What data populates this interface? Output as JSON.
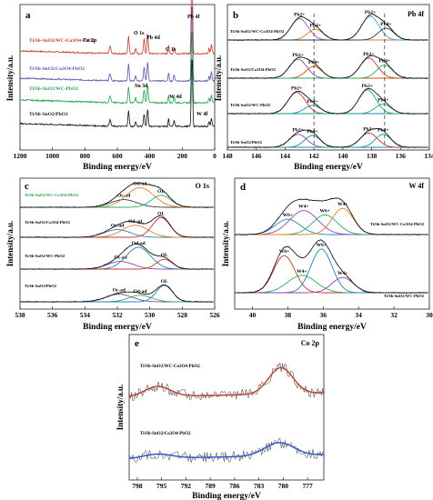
{
  "figure": {
    "panels": [
      "a",
      "b",
      "c",
      "d",
      "e"
    ]
  },
  "chart_data": [
    {
      "id": "a",
      "type": "line",
      "letter": "a",
      "xlabel": "Binding energy/eV",
      "ylabel": "Intensity/a.u.",
      "xlim": [
        1200,
        0
      ],
      "xticks": [
        1200,
        1000,
        800,
        600,
        400,
        200,
        0
      ],
      "series": [
        {
          "name": "Ti/Sb-SnO2/WC-Co3O4-PbO2",
          "color": "#c0392b"
        },
        {
          "name": "Ti/Sb-SnO2/Co3O4-PbO2",
          "color": "#5b4fa8"
        },
        {
          "name": "Ti/Sb-SnO2/WC-PbO2",
          "color": "#1f9e4a"
        },
        {
          "name": "Ti/Sb-SnO2/PbO2",
          "color": "#111111"
        }
      ],
      "annotations": [
        {
          "text": "Co 2p",
          "x": 785
        },
        {
          "text": "O 1s",
          "x": 531
        },
        {
          "text": "Pb 4d",
          "x": 430
        },
        {
          "text": "Sn 3d",
          "x": 487
        },
        {
          "text": "C 1s",
          "x": 284
        },
        {
          "text": "W 4d",
          "x": 250
        },
        {
          "text": "Pb 4f",
          "x": 138
        },
        {
          "text": "W 4f",
          "x": 35
        }
      ]
    },
    {
      "id": "b",
      "type": "line",
      "letter": "b",
      "corner": "Pb 4f",
      "xlabel": "Binding energy/eV",
      "ylabel": "Intensity/a.u.",
      "xlim": [
        148,
        134
      ],
      "xticks": [
        148,
        146,
        144,
        142,
        140,
        138,
        136,
        134
      ],
      "dashed_lines": [
        142.0,
        137.1
      ],
      "series": [
        {
          "name": "Ti/Sb-SnO2/WC-Co3O4-PbO2",
          "peaks": [
            {
              "c": 143.0,
              "a": 0.9,
              "w": 0.6
            },
            {
              "c": 141.9,
              "a": 0.45,
              "w": 0.55
            },
            {
              "c": 138.1,
              "a": 1.0,
              "w": 0.6
            },
            {
              "c": 137.0,
              "a": 0.5,
              "w": 0.55
            }
          ],
          "colors": [
            "#9b59b6",
            "#e67e22",
            "#3fa7d6",
            "#2c3e50"
          ]
        },
        {
          "name": "Ti/Sb-SnO2/Co3O4-PbO2",
          "peaks": [
            {
              "c": 143.1,
              "a": 0.8,
              "w": 0.6
            },
            {
              "c": 142.0,
              "a": 0.5,
              "w": 0.55
            },
            {
              "c": 138.2,
              "a": 0.85,
              "w": 0.6
            },
            {
              "c": 137.1,
              "a": 0.55,
              "w": 0.55
            }
          ],
          "colors": [
            "#8e44ad",
            "#d35400",
            "#c0392b",
            "#27ae60"
          ]
        },
        {
          "name": "Ti/Sb-SnO2/WC-PbO2",
          "peaks": [
            {
              "c": 143.2,
              "a": 0.9,
              "w": 0.6
            },
            {
              "c": 142.1,
              "a": 0.35,
              "w": 0.55
            },
            {
              "c": 138.3,
              "a": 1.0,
              "w": 0.6
            },
            {
              "c": 137.2,
              "a": 0.4,
              "w": 0.55
            }
          ],
          "colors": [
            "#c0392b",
            "#2980b9",
            "#27ae60",
            "#16a085"
          ]
        },
        {
          "name": "Ti/Sb-SnO2/PbO2",
          "peaks": [
            {
              "c": 143.1,
              "a": 0.55,
              "w": 0.6
            },
            {
              "c": 142.1,
              "a": 0.5,
              "w": 0.55
            },
            {
              "c": 138.2,
              "a": 0.6,
              "w": 0.6
            },
            {
              "c": 137.2,
              "a": 0.55,
              "w": 0.55
            }
          ],
          "colors": [
            "#8e44ad",
            "#2980b9",
            "#c0392b",
            "#16a085"
          ]
        }
      ],
      "peak_labels": [
        "Pb2+",
        "Pb4+",
        "Pb2+",
        "Pb4+"
      ]
    },
    {
      "id": "c",
      "type": "line",
      "letter": "c",
      "corner": "O 1s",
      "xlabel": "Binding energy/eV",
      "ylabel": "Intensity/a.u.",
      "xlim": [
        538,
        526
      ],
      "xticks": [
        538,
        536,
        534,
        532,
        530,
        528,
        526
      ],
      "series": [
        {
          "name": "Ti/Sb-SnO2/WC-Co3O4-PbO2",
          "peaks": [
            {
              "c": 531.6,
              "a": 0.35,
              "w": 0.8
            },
            {
              "c": 530.6,
              "a": 0.9,
              "w": 0.85
            },
            {
              "c": 529.3,
              "a": 0.55,
              "w": 0.6
            }
          ],
          "colors": [
            "#2c3e50",
            "#e67e22",
            "#27ae60"
          ]
        },
        {
          "name": "Ti/Sb-SnO2/Co3O4-PbO2",
          "peaks": [
            {
              "c": 532.0,
              "a": 0.35,
              "w": 0.8
            },
            {
              "c": 530.9,
              "a": 0.55,
              "w": 0.8
            },
            {
              "c": 529.3,
              "a": 0.9,
              "w": 0.55
            }
          ],
          "colors": [
            "#2980b9",
            "#e67e22",
            "#c0392b"
          ]
        },
        {
          "name": "Ti/Sb-SnO2/WC-PbO2",
          "peaks": [
            {
              "c": 531.8,
              "a": 0.35,
              "w": 0.8
            },
            {
              "c": 530.7,
              "a": 1.0,
              "w": 0.75
            },
            {
              "c": 529.1,
              "a": 0.45,
              "w": 0.5
            }
          ],
          "colors": [
            "#8e44ad",
            "#2980b9",
            "#c0392b"
          ]
        },
        {
          "name": "Ti/Sb-SnO2/PbO2",
          "peaks": [
            {
              "c": 531.9,
              "a": 0.35,
              "w": 0.8
            },
            {
              "c": 530.6,
              "a": 0.3,
              "w": 0.7
            },
            {
              "c": 529.1,
              "a": 0.75,
              "w": 0.5
            }
          ],
          "colors": [
            "#8e44ad",
            "#27ae60",
            "#2980b9"
          ]
        }
      ],
      "peak_labels": [
        "Oc-ad",
        "Od-ad",
        "OL"
      ]
    },
    {
      "id": "d",
      "type": "line",
      "letter": "d",
      "corner": "W 4f",
      "xlabel": "Binding energy/eV",
      "ylabel": "Intensity/a.u.",
      "xlim": [
        41,
        30
      ],
      "xticks": [
        40,
        38,
        36,
        34,
        32,
        30
      ],
      "series": [
        {
          "name": "Ti/Sb-SnO2/WC-Co3O4-PbO2",
          "peaks": [
            {
              "c": 38.0,
              "a": 0.35,
              "w": 0.7
            },
            {
              "c": 37.1,
              "a": 0.55,
              "w": 0.8
            },
            {
              "c": 35.9,
              "a": 0.45,
              "w": 0.7
            },
            {
              "c": 34.9,
              "a": 0.6,
              "w": 0.6
            }
          ],
          "colors": [
            "#2980b9",
            "#8e44ad",
            "#27ae60",
            "#e67e22"
          ]
        },
        {
          "name": "Ti/Sb-SnO2/WC-PbO2",
          "peaks": [
            {
              "c": 38.2,
              "a": 0.85,
              "w": 0.6
            },
            {
              "c": 37.2,
              "a": 0.4,
              "w": 0.8
            },
            {
              "c": 36.1,
              "a": 1.0,
              "w": 0.6
            },
            {
              "c": 34.9,
              "a": 0.35,
              "w": 0.6
            }
          ],
          "colors": [
            "#c0392b",
            "#27ae60",
            "#2980b9",
            "#8e44ad"
          ]
        }
      ],
      "peak_labels": [
        "W6+",
        "W4+",
        "W6+",
        "W4+"
      ]
    },
    {
      "id": "e",
      "type": "line",
      "letter": "e",
      "corner": "Co 2p",
      "xlabel": "Binding energy/eV",
      "ylabel": "Intensity/a.u.",
      "xlim": [
        799,
        775
      ],
      "xticks": [
        798,
        795,
        792,
        789,
        786,
        783,
        780,
        777
      ],
      "series": [
        {
          "name": "Ti/Sb-SnO2/WC-Co3O4-PbO2",
          "fit_color": "#c0392b",
          "peaks": [
            {
              "c": 795.5,
              "a": 0.35,
              "w": 1.6
            },
            {
              "c": 780.3,
              "a": 0.9,
              "w": 1.5
            }
          ]
        },
        {
          "name": "Ti/Sb-SnO2/Co3O4-PbO2",
          "fit_color": "#2c4fd1",
          "peaks": [
            {
              "c": 795.5,
              "a": 0.15,
              "w": 1.8
            },
            {
              "c": 780.5,
              "a": 0.45,
              "w": 1.8
            }
          ]
        }
      ]
    }
  ]
}
